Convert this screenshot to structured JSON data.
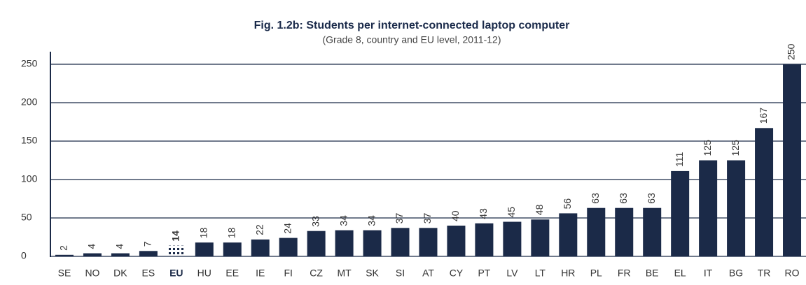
{
  "chart_data": {
    "type": "bar",
    "title": "Fig. 1.2b: Students per internet-connected laptop computer",
    "subtitle": "(Grade 8, country and EU level, 2011-12)",
    "categories": [
      "SE",
      "NO",
      "DK",
      "ES",
      "EU",
      "HU",
      "EE",
      "IE",
      "FI",
      "CZ",
      "MT",
      "SK",
      "SI",
      "AT",
      "CY",
      "PT",
      "LV",
      "LT",
      "HR",
      "PL",
      "FR",
      "BE",
      "EL",
      "IT",
      "BG",
      "TR",
      "RO"
    ],
    "values": [
      2,
      4,
      4,
      7,
      14,
      18,
      18,
      22,
      24,
      33,
      34,
      34,
      37,
      37,
      40,
      43,
      45,
      48,
      56,
      63,
      63,
      63,
      111,
      125,
      125,
      167,
      250
    ],
    "color": "#1b2a48",
    "highlight": "EU",
    "ylim": [
      0,
      250
    ],
    "yticks": [
      0,
      50,
      100,
      150,
      200,
      250
    ],
    "grid": true
  }
}
